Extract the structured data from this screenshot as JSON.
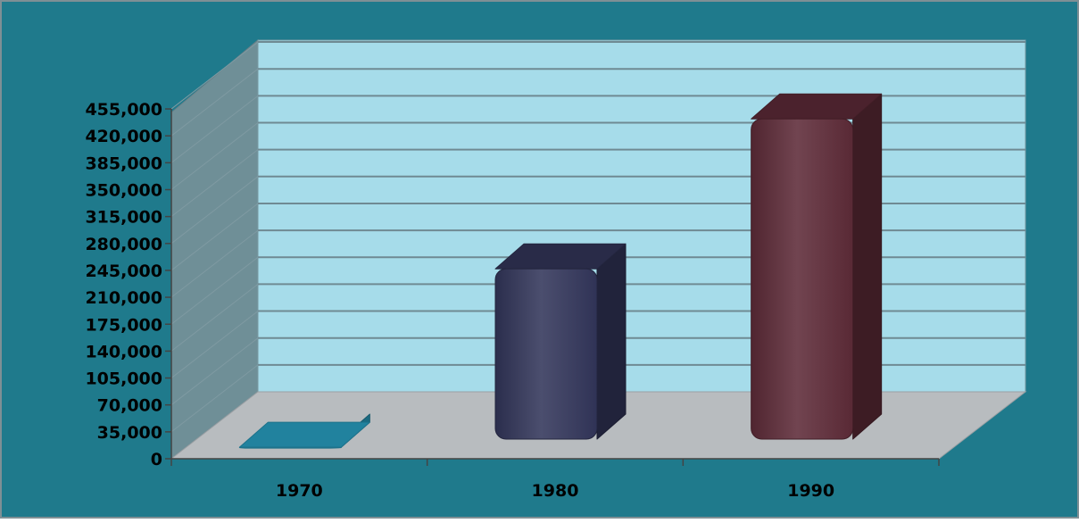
{
  "colors": {
    "frame_background": "#1f7a8c",
    "back_wall": "#a6dcea",
    "side_wall": "#6f8f97",
    "floor": "#b8bcbf",
    "gridline": "#6f8a93"
  },
  "chart_data": {
    "type": "bar",
    "title": "",
    "xlabel": "",
    "ylabel": "",
    "categories": [
      "1970",
      "1980",
      "1990"
    ],
    "values": [
      15000,
      247000,
      442000
    ],
    "bar_colors": [
      "#29a3c6",
      "#33365a",
      "#5e2b38"
    ],
    "ylim": [
      0,
      455000
    ],
    "yticks": [
      0,
      35000,
      70000,
      105000,
      140000,
      175000,
      210000,
      245000,
      280000,
      315000,
      350000,
      385000,
      420000,
      455000
    ],
    "ytick_labels": [
      "0",
      "35,000",
      "70,000",
      "105,000",
      "140,000",
      "175,000",
      "210,000",
      "245,000",
      "280,000",
      "315,000",
      "350,000",
      "385,000",
      "420,000",
      "455,000"
    ],
    "grid": true,
    "legend": "none",
    "style": "3d-column"
  }
}
